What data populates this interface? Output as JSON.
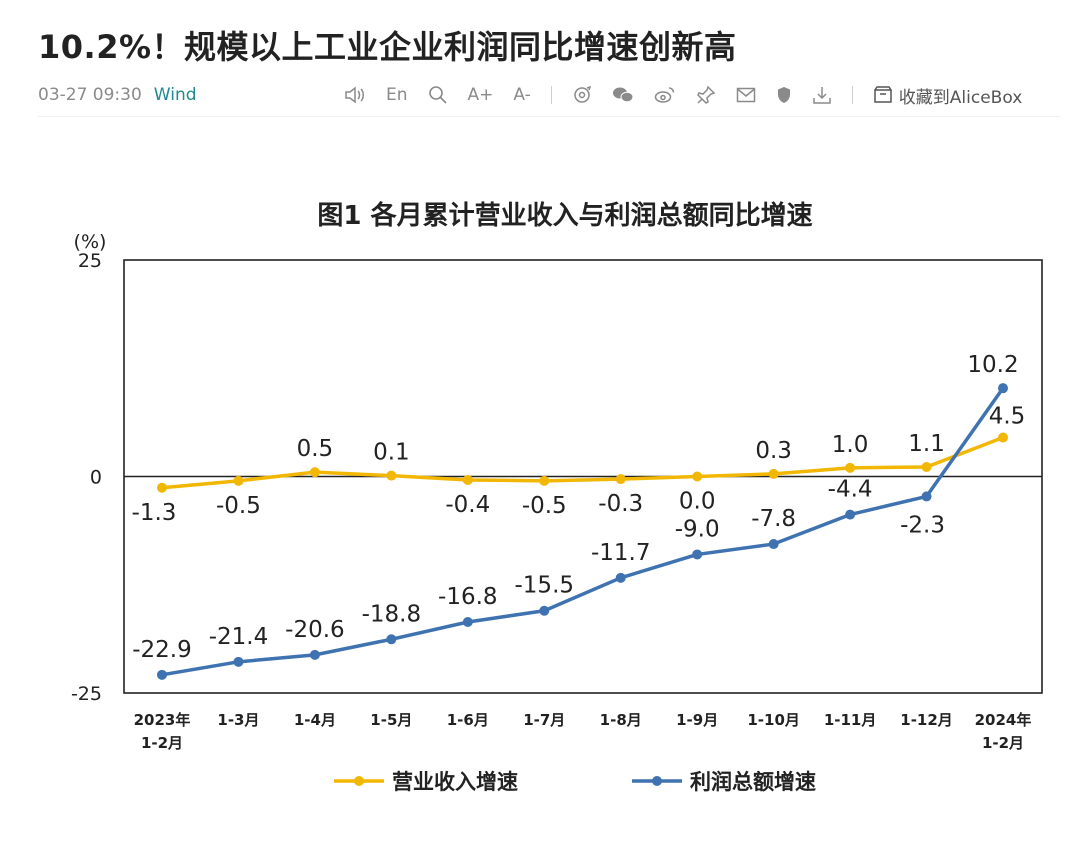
{
  "article": {
    "title": "10.2%！规模以上工业企业利润同比增速创新高",
    "datetime": "03-27 09:30",
    "source": "Wind"
  },
  "toolbar": {
    "lang_label": "En",
    "font_up_label": "A+",
    "font_down_label": "A-",
    "save_label": "收藏到AliceBox",
    "icons": [
      "speaker-icon",
      "search-icon",
      "share-circle-icon",
      "wechat-icon",
      "weibo-icon",
      "pin-icon",
      "mail-icon",
      "shield-icon",
      "download-icon",
      "box-icon"
    ]
  },
  "chart_data": {
    "type": "line",
    "title": "图1  各月累计营业收入与利润总额同比增速",
    "ylabel": "(%)",
    "ylim": [
      -25,
      25
    ],
    "yticks": [
      25,
      0,
      -25
    ],
    "categories": [
      [
        "2023年",
        "1-2月"
      ],
      [
        "1-3月"
      ],
      [
        "1-4月"
      ],
      [
        "1-5月"
      ],
      [
        "1-6月"
      ],
      [
        "1-7月"
      ],
      [
        "1-8月"
      ],
      [
        "1-9月"
      ],
      [
        "1-10月"
      ],
      [
        "1-11月"
      ],
      [
        "1-12月"
      ],
      [
        "2024年",
        "1-2月"
      ]
    ],
    "series": [
      {
        "name": "营业收入增速",
        "color": "#f2b705",
        "values": [
          -1.3,
          -0.5,
          0.5,
          0.1,
          -0.4,
          -0.5,
          -0.3,
          0.0,
          0.3,
          1.0,
          1.1,
          4.5
        ],
        "labels": [
          "-1.3",
          "-0.5",
          "0.5",
          "0.1",
          "-0.4",
          "-0.5",
          "-0.3",
          "0.0",
          "0.3",
          "1.0",
          "1.1",
          "4.5"
        ]
      },
      {
        "name": "利润总额增速",
        "color": "#3f72b0",
        "values": [
          -22.9,
          -21.4,
          -20.6,
          -18.8,
          -16.8,
          -15.5,
          -11.7,
          -9.0,
          -7.8,
          -4.4,
          -2.3,
          10.2
        ],
        "labels": [
          "-22.9",
          "-21.4",
          "-20.6",
          "-18.8",
          "-16.8",
          "-15.5",
          "-11.7",
          "-9.0",
          "-7.8",
          "-4.4",
          "-2.3",
          "10.2"
        ]
      }
    ],
    "legend_position": "bottom",
    "grid": false
  }
}
